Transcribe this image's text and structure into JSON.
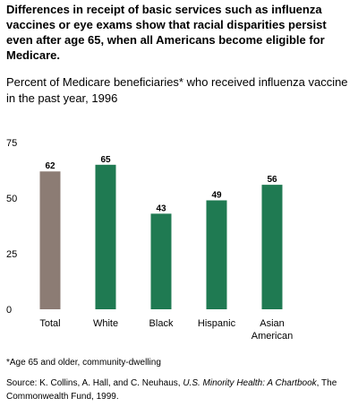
{
  "headline": "Differences in receipt of basic services such as influenza vaccines or eye exams show that racial disparities persist even after age 65, when all Americans become eligible for Medicare.",
  "subtitle": "Percent of Medicare beneficiaries* who received influenza vaccine in the past year, 1996",
  "footnote": "*Age 65 and older, community-dwelling",
  "source": {
    "prefix": "Source: K. Collins, A. Hall, and C. Neuhaus, ",
    "book_title": "U.S. Minority Health: A Chartbook",
    "suffix": ", The Commonwealth Fund, 1999."
  },
  "chart_data": {
    "type": "bar",
    "categories": [
      "Total",
      "White",
      "Black",
      "Hispanic",
      "Asian American"
    ],
    "category_lines": [
      [
        "Total"
      ],
      [
        "White"
      ],
      [
        "Black"
      ],
      [
        "Hispanic"
      ],
      [
        "Asian",
        "American"
      ]
    ],
    "values": [
      62,
      65,
      43,
      49,
      56
    ],
    "bar_colors": [
      "#8c7c74",
      "#1f7a52",
      "#1f7a52",
      "#1f7a52",
      "#1f7a52"
    ],
    "yticks": [
      0,
      25,
      50,
      75
    ],
    "ylim": [
      0,
      75
    ],
    "grid": false,
    "title": "",
    "xlabel": "",
    "ylabel": ""
  }
}
